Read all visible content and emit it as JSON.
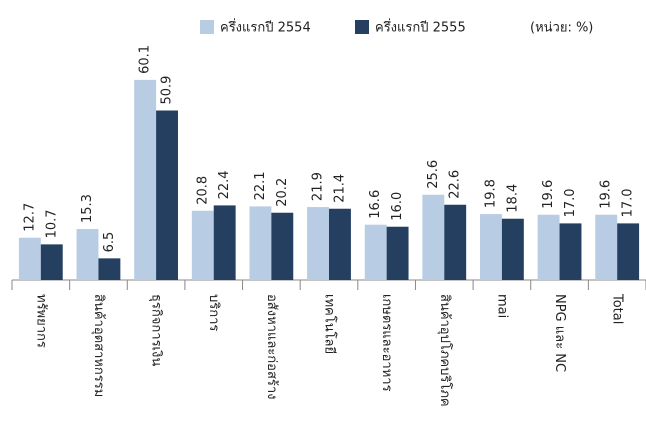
{
  "chart_data": {
    "type": "bar",
    "unit_note": "(หน่วย: %)",
    "categories": [
      "ทรัพยากร",
      "สินค้าอุตสาหกรรม",
      "ธุรกิจการเงิน",
      "บริการ",
      "อสังหาและก่อสร้าง",
      "เทคโนโลยี",
      "เกษตรและอาหาร",
      "สินค้าอุปโภคบริโภค",
      "mai",
      "NPG และ NC",
      "Total"
    ],
    "series": [
      {
        "name": "ครึ่งแรกปี 2554",
        "color": "#b8cce4",
        "values": [
          12.7,
          15.3,
          60.1,
          20.8,
          22.1,
          21.9,
          16.6,
          25.6,
          19.8,
          19.6,
          19.6
        ],
        "value_labels": [
          "12.7",
          "15.3",
          "60.1",
          "20.8",
          "22.1",
          "21.9",
          "16.6",
          "25.6",
          "19.8",
          "19.6",
          "19.6"
        ]
      },
      {
        "name": "ครึ่งแรกปี 2555",
        "color": "#243f60",
        "values": [
          10.7,
          6.5,
          50.9,
          22.4,
          20.2,
          21.4,
          16.0,
          22.6,
          18.4,
          17.0,
          17.0
        ],
        "value_labels": [
          "10.7",
          "6.5",
          "50.9",
          "22.4",
          "20.2",
          "21.4",
          "16.0",
          "22.6",
          "18.4",
          "17.0",
          "17.0"
        ]
      }
    ],
    "legend": "top"
  }
}
